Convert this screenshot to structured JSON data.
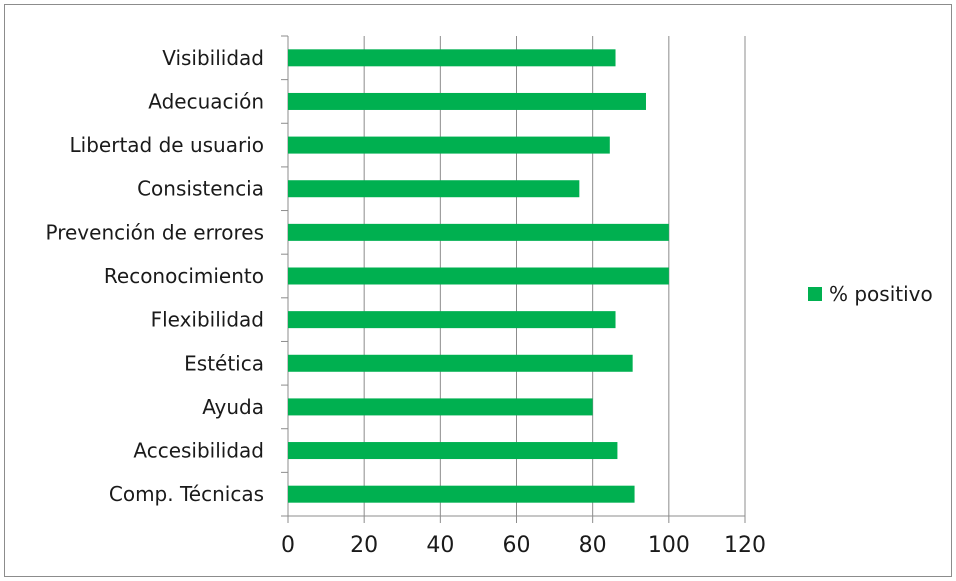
{
  "chart_data": {
    "type": "bar",
    "orientation": "horizontal",
    "categories": [
      "Visibilidad",
      "Adecuación",
      "Libertad de usuario",
      "Consistencia",
      "Prevención de errores",
      "Reconocimiento",
      "Flexibilidad",
      "Estética",
      "Ayuda",
      "Accesibilidad",
      "Comp. Técnicas"
    ],
    "series": [
      {
        "name": "% positivo",
        "color": "#00b050",
        "values": [
          86,
          94,
          84.5,
          76.5,
          100,
          100,
          86,
          90.5,
          80,
          86.5,
          91
        ]
      }
    ],
    "xlim": [
      0,
      120
    ],
    "xticks": [
      0,
      20,
      40,
      60,
      80,
      100,
      120
    ],
    "grid": true,
    "legend": "right",
    "title": "",
    "xlabel": "",
    "ylabel": ""
  }
}
